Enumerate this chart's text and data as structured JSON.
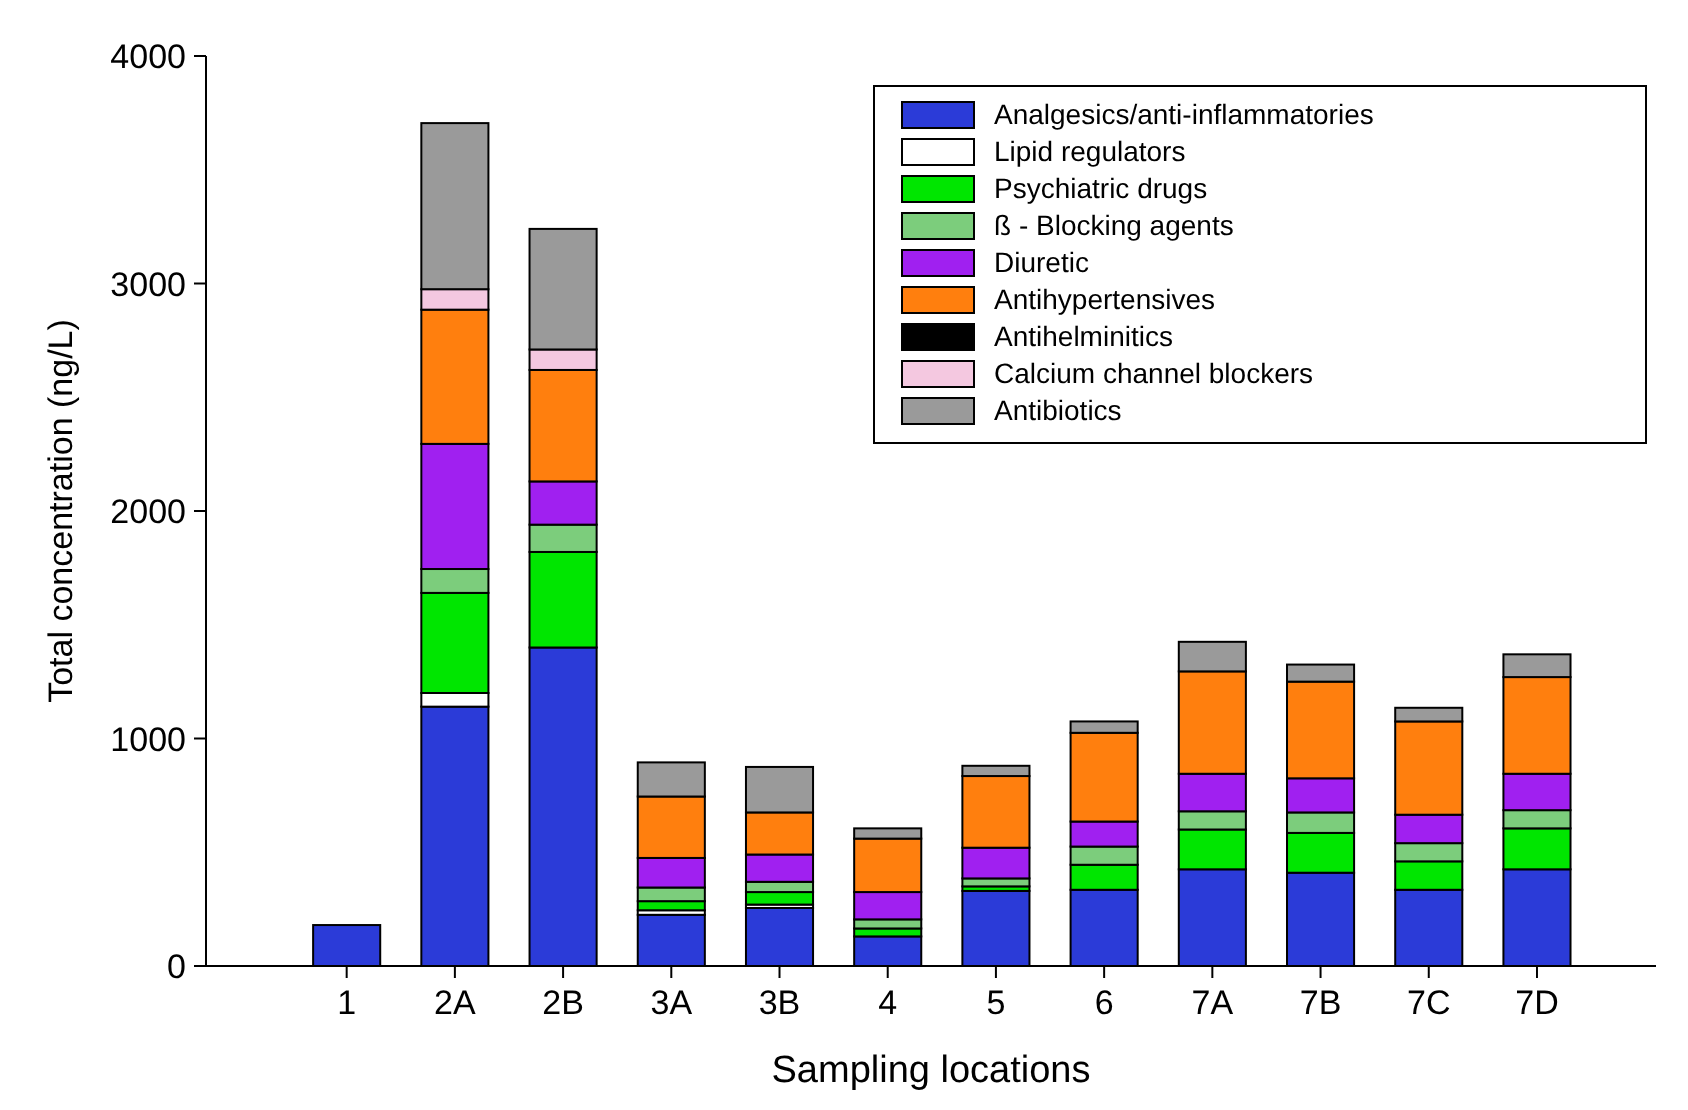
{
  "chart_data": {
    "type": "bar",
    "stacked": true,
    "xlabel": "Sampling locations",
    "ylabel": "Total concentration (ng/L)",
    "categories": [
      "1",
      "2A",
      "2B",
      "3A",
      "3B",
      "4",
      "5",
      "6",
      "7A",
      "7B",
      "7C",
      "7D"
    ],
    "ylim": [
      0,
      4000
    ],
    "yticks": [
      0,
      1000,
      2000,
      3000,
      4000
    ],
    "grid": false,
    "legend": "top right",
    "series": [
      {
        "name": "Analgesics/anti-inflammatories",
        "color": "#2b3bd8",
        "values": [
          180,
          1140,
          1400,
          225,
          255,
          130,
          330,
          335,
          425,
          410,
          335,
          425
        ]
      },
      {
        "name": "Lipid regulators",
        "color": "#ffffff",
        "values": [
          0,
          60,
          0,
          20,
          15,
          0,
          0,
          0,
          0,
          0,
          0,
          0
        ]
      },
      {
        "name": "Psychiatric drugs",
        "color": "#00e600",
        "values": [
          0,
          440,
          420,
          40,
          55,
          35,
          20,
          110,
          175,
          175,
          125,
          180
        ]
      },
      {
        "name": "ß  - Blocking agents",
        "color": "#7ccd7c",
        "values": [
          0,
          105,
          120,
          60,
          45,
          40,
          35,
          80,
          80,
          90,
          80,
          80
        ]
      },
      {
        "name": "Diuretic",
        "color": "#a020f0",
        "values": [
          0,
          550,
          190,
          130,
          120,
          120,
          135,
          110,
          165,
          150,
          125,
          160
        ]
      },
      {
        "name": "Antihypertensives",
        "color": "#ff7f0e",
        "values": [
          0,
          590,
          490,
          270,
          185,
          235,
          315,
          390,
          450,
          425,
          410,
          425
        ]
      },
      {
        "name": "Antihelminitics",
        "color": "#000000",
        "values": [
          0,
          0,
          0,
          0,
          0,
          0,
          0,
          0,
          0,
          0,
          0,
          0
        ]
      },
      {
        "name": "Calcium channel blockers",
        "color": "#f4c8e0",
        "values": [
          0,
          90,
          90,
          0,
          0,
          0,
          0,
          0,
          0,
          0,
          0,
          0
        ]
      },
      {
        "name": "Antibiotics",
        "color": "#9a9a9a",
        "values": [
          0,
          730,
          530,
          150,
          200,
          45,
          45,
          50,
          130,
          75,
          60,
          100
        ]
      }
    ]
  }
}
